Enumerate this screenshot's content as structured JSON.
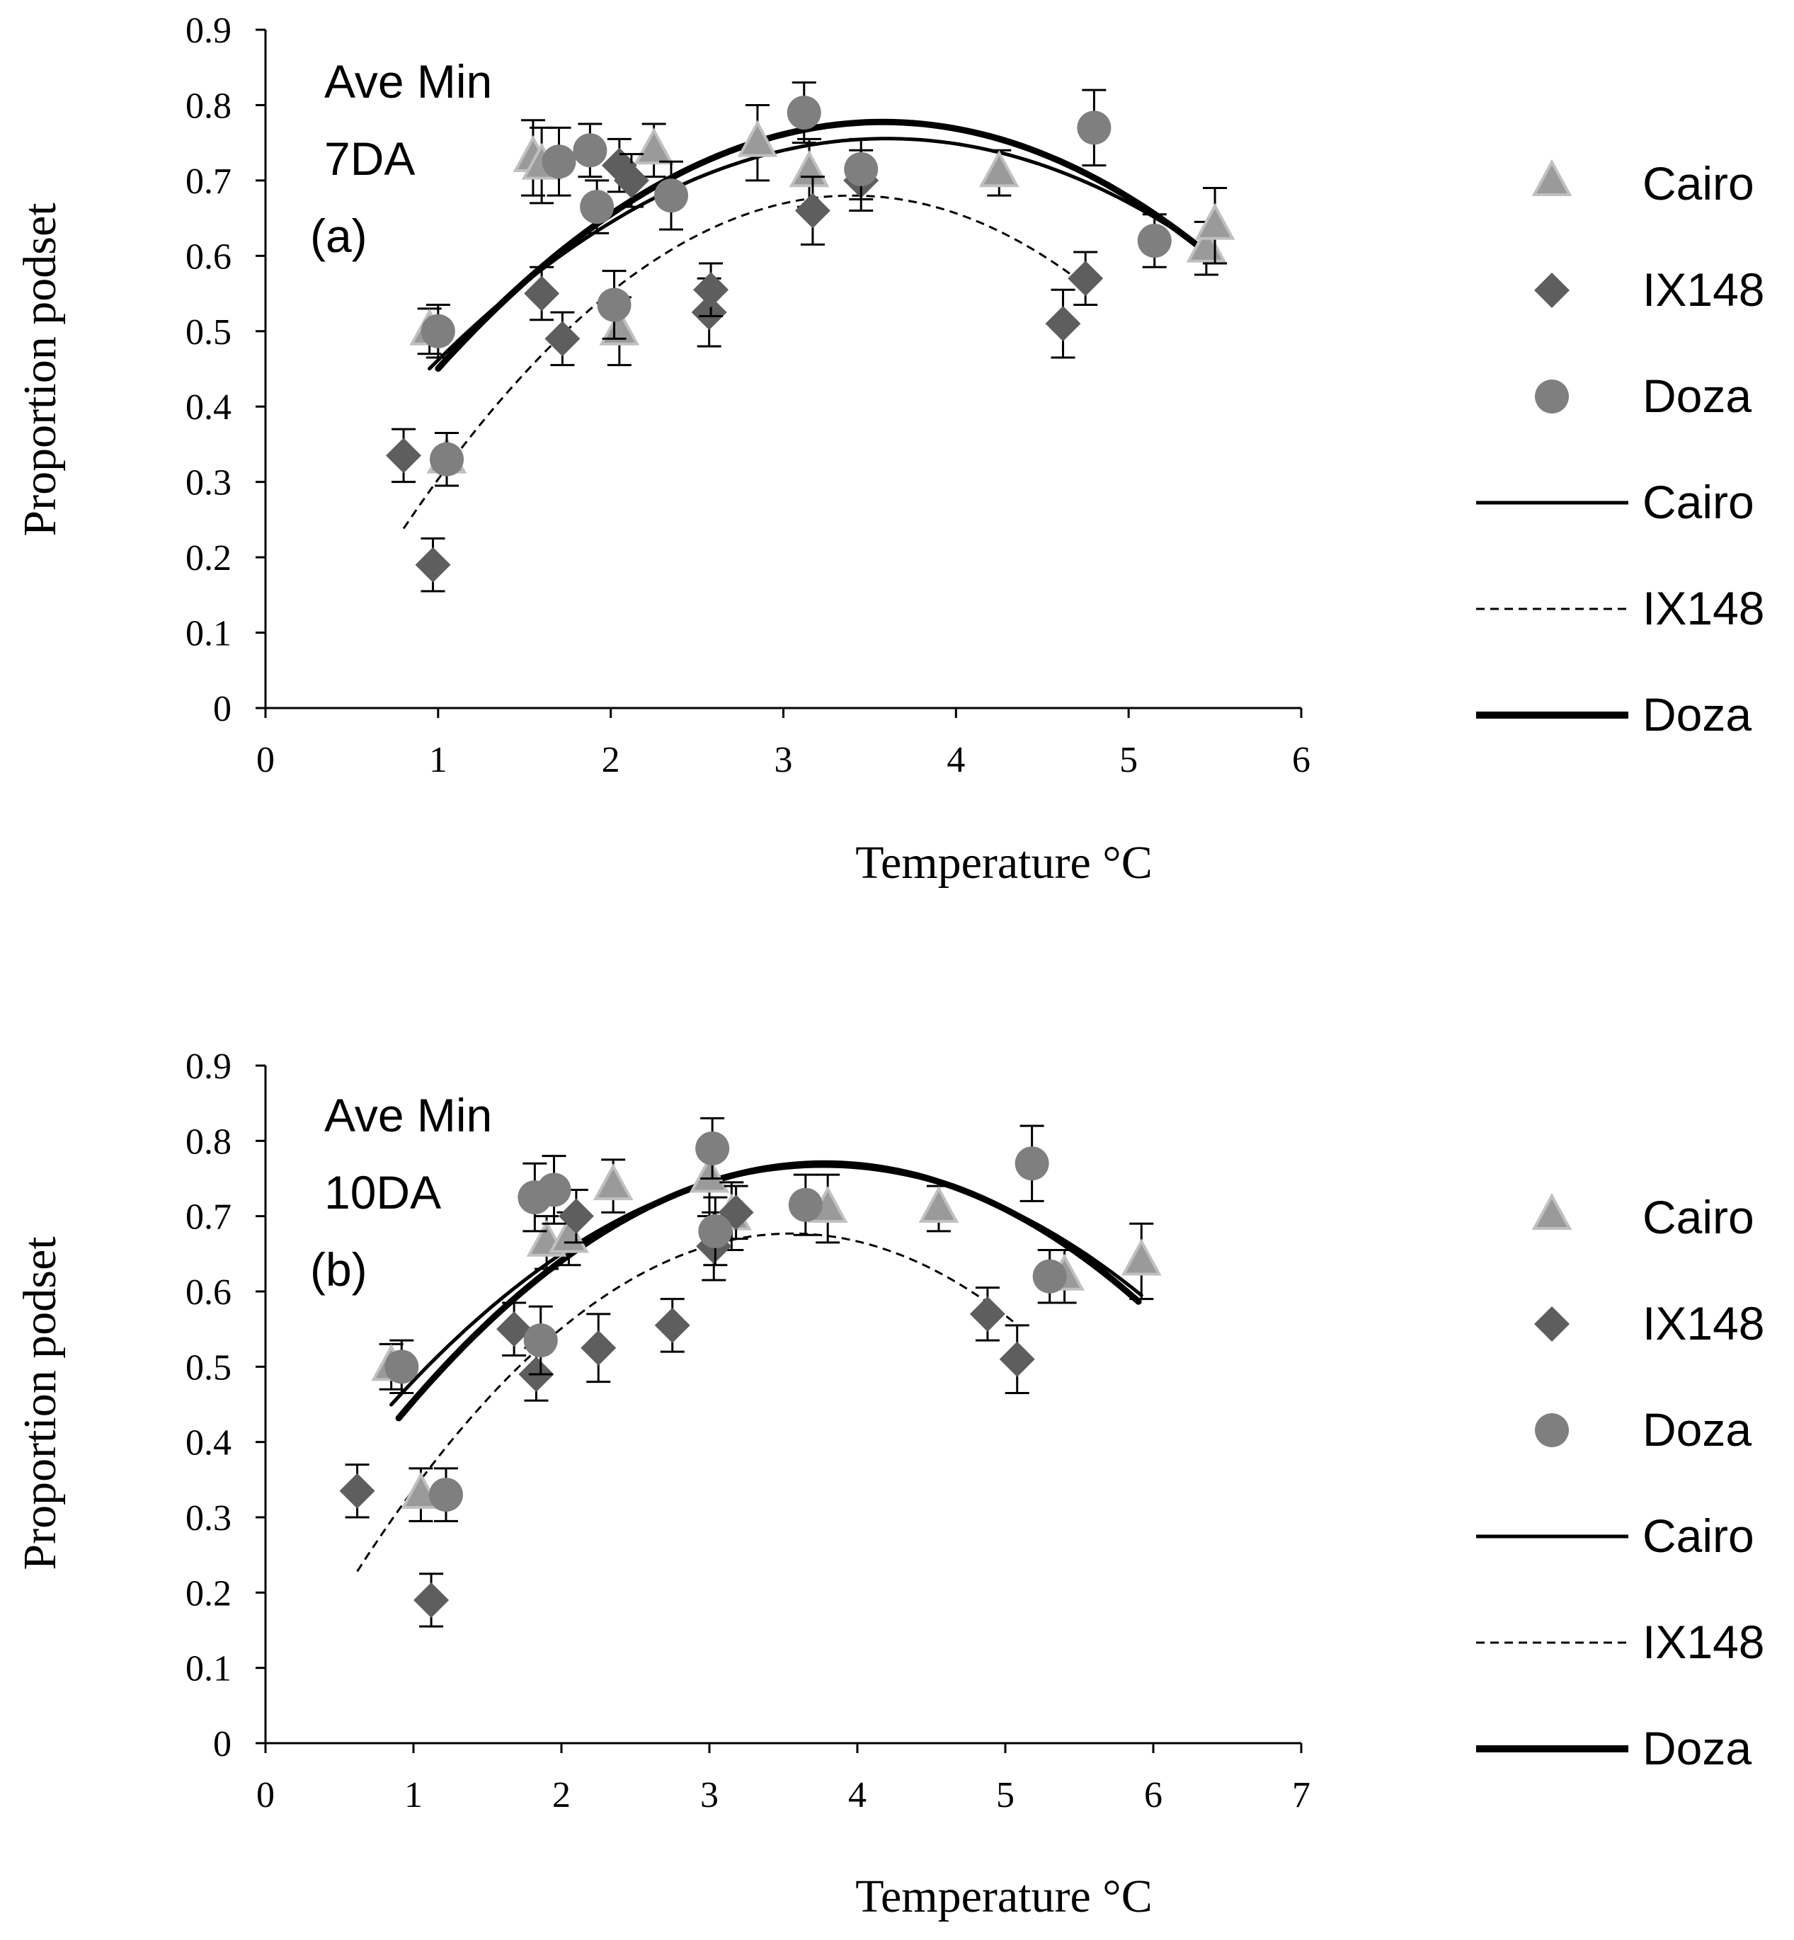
{
  "chart_data": [
    {
      "id": "panel-a",
      "type": "scatter",
      "xlabel": "Temperature °C",
      "ylabel": "Proportion podset",
      "xlim": [
        0,
        6
      ],
      "ylim": [
        0,
        0.9
      ],
      "xticks": [
        "0",
        "1",
        "2",
        "3",
        "4",
        "5",
        "6"
      ],
      "yticks": [
        "0",
        "0.1",
        "0.2",
        "0.3",
        "0.4",
        "0.5",
        "0.6",
        "0.7",
        "0.8",
        "0.9"
      ],
      "annotation": [
        "Ave Min",
        "7DA",
        "(a)"
      ],
      "legend": [
        "Cairo",
        "IX148",
        "Doza",
        "Cairo",
        "IX148",
        "Doza"
      ],
      "series": [
        {
          "name": "Cairo",
          "marker": "triangle",
          "color": "#9a9a9a",
          "edge": "#c0c0c0",
          "points": [
            [
              0.95,
              0.5,
              0.03
            ],
            [
              1.05,
              0.33,
              0.035
            ],
            [
              1.55,
              0.73,
              0.05
            ],
            [
              1.6,
              0.72,
              0.05
            ],
            [
              2.05,
              0.5,
              0.045
            ],
            [
              2.25,
              0.74,
              0.035
            ],
            [
              2.85,
              0.75,
              0.05
            ],
            [
              3.15,
              0.71,
              0.045
            ],
            [
              4.25,
              0.71,
              0.03
            ],
            [
              5.45,
              0.61,
              0.035
            ],
            [
              5.5,
              0.64,
              0.05
            ]
          ]
        },
        {
          "name": "IX148",
          "marker": "diamond",
          "color": "#5e5e5e",
          "edge": "#5e5e5e",
          "points": [
            [
              0.8,
              0.335,
              0.035
            ],
            [
              0.97,
              0.19,
              0.035
            ],
            [
              1.6,
              0.55,
              0.035
            ],
            [
              1.72,
              0.49,
              0.035
            ],
            [
              2.05,
              0.72,
              0.035
            ],
            [
              2.12,
              0.7,
              0.035
            ],
            [
              2.57,
              0.525,
              0.045
            ],
            [
              2.58,
              0.555,
              0.035
            ],
            [
              3.17,
              0.66,
              0.045
            ],
            [
              3.45,
              0.7,
              0.04
            ],
            [
              4.62,
              0.51,
              0.045
            ],
            [
              4.75,
              0.57,
              0.035
            ]
          ]
        },
        {
          "name": "Doza",
          "marker": "circle",
          "color": "#7f7f7f",
          "edge": "#7f7f7f",
          "points": [
            [
              1.0,
              0.5,
              0.035
            ],
            [
              1.05,
              0.33,
              0.035
            ],
            [
              1.7,
              0.725,
              0.045
            ],
            [
              1.88,
              0.74,
              0.035
            ],
            [
              1.92,
              0.665,
              0.035
            ],
            [
              2.02,
              0.535,
              0.045
            ],
            [
              2.35,
              0.68,
              0.045
            ],
            [
              3.12,
              0.79,
              0.04
            ],
            [
              3.45,
              0.715,
              0.04
            ],
            [
              4.8,
              0.77,
              0.05
            ],
            [
              5.15,
              0.62,
              0.035
            ]
          ]
        }
      ],
      "fits": [
        {
          "name": "Cairo",
          "style": "solid",
          "width": 5,
          "x_range": [
            0.95,
            5.5
          ],
          "coef": [
            -0.04348,
            0.31304,
            0.19217
          ]
        },
        {
          "name": "IX148",
          "style": "dashed",
          "width": 3,
          "x_range": [
            0.8,
            4.7
          ],
          "coef": [
            -0.06536,
            0.44444,
            -0.07556
          ]
        },
        {
          "name": "Doza",
          "style": "solid",
          "width": 9,
          "x_range": [
            1.0,
            5.5
          ],
          "coef": [
            -0.04932,
            0.35272,
            0.14698
          ]
        }
      ]
    },
    {
      "id": "panel-b",
      "type": "scatter",
      "xlabel": "Temperature °C",
      "ylabel": "Proportion podset",
      "xlim": [
        0,
        7
      ],
      "ylim": [
        0,
        0.9
      ],
      "xticks": [
        "0",
        "1",
        "2",
        "3",
        "4",
        "5",
        "6",
        "7"
      ],
      "yticks": [
        "0",
        "0.1",
        "0.2",
        "0.3",
        "0.4",
        "0.5",
        "0.6",
        "0.7",
        "0.8",
        "0.9"
      ],
      "annotation": [
        "Ave Min",
        "10DA",
        "(b)"
      ],
      "legend": [
        "Cairo",
        "IX148",
        "Doza",
        "Cairo",
        "IX148",
        "Doza"
      ],
      "series": [
        {
          "name": "Cairo",
          "marker": "triangle",
          "color": "#9a9a9a",
          "edge": "#c0c0c0",
          "points": [
            [
              0.85,
              0.5,
              0.03
            ],
            [
              1.05,
              0.33,
              0.035
            ],
            [
              1.9,
              0.665,
              0.035
            ],
            [
              2.05,
              0.67,
              0.035
            ],
            [
              2.35,
              0.74,
              0.035
            ],
            [
              3.0,
              0.75,
              0.05
            ],
            [
              3.15,
              0.7,
              0.045
            ],
            [
              3.8,
              0.71,
              0.045
            ],
            [
              4.55,
              0.71,
              0.03
            ],
            [
              5.4,
              0.62,
              0.035
            ],
            [
              5.92,
              0.64,
              0.05
            ]
          ]
        },
        {
          "name": "IX148",
          "marker": "diamond",
          "color": "#5e5e5e",
          "edge": "#5e5e5e",
          "points": [
            [
              0.62,
              0.335,
              0.035
            ],
            [
              1.12,
              0.19,
              0.035
            ],
            [
              1.68,
              0.55,
              0.035
            ],
            [
              1.83,
              0.49,
              0.035
            ],
            [
              2.1,
              0.7,
              0.035
            ],
            [
              2.25,
              0.525,
              0.045
            ],
            [
              2.75,
              0.555,
              0.035
            ],
            [
              3.03,
              0.66,
              0.045
            ],
            [
              3.18,
              0.705,
              0.035
            ],
            [
              4.88,
              0.57,
              0.035
            ],
            [
              5.08,
              0.51,
              0.045
            ]
          ]
        },
        {
          "name": "Doza",
          "marker": "circle",
          "color": "#7f7f7f",
          "edge": "#7f7f7f",
          "points": [
            [
              0.92,
              0.5,
              0.035
            ],
            [
              1.22,
              0.33,
              0.035
            ],
            [
              1.82,
              0.725,
              0.045
            ],
            [
              1.86,
              0.535,
              0.045
            ],
            [
              1.95,
              0.735,
              0.045
            ],
            [
              3.02,
              0.79,
              0.04
            ],
            [
              3.04,
              0.68,
              0.045
            ],
            [
              3.65,
              0.715,
              0.04
            ],
            [
              5.18,
              0.77,
              0.05
            ],
            [
              5.3,
              0.62,
              0.035
            ]
          ]
        }
      ],
      "fits": [
        {
          "name": "Cairo",
          "style": "solid",
          "width": 5,
          "x_range": [
            0.85,
            5.92
          ],
          "coef": [
            -0.03715,
            0.28018,
            0.23823
          ]
        },
        {
          "name": "IX148",
          "style": "dashed",
          "width": 3,
          "x_range": [
            0.62,
            5.08
          ],
          "coef": [
            -0.05212,
            0.37051,
            0.01845
          ]
        },
        {
          "name": "Doza",
          "style": "solid",
          "width": 9,
          "x_range": [
            0.9,
            5.9
          ],
          "coef": [
            -0.0408,
            0.30842,
            0.18712
          ]
        }
      ]
    }
  ]
}
